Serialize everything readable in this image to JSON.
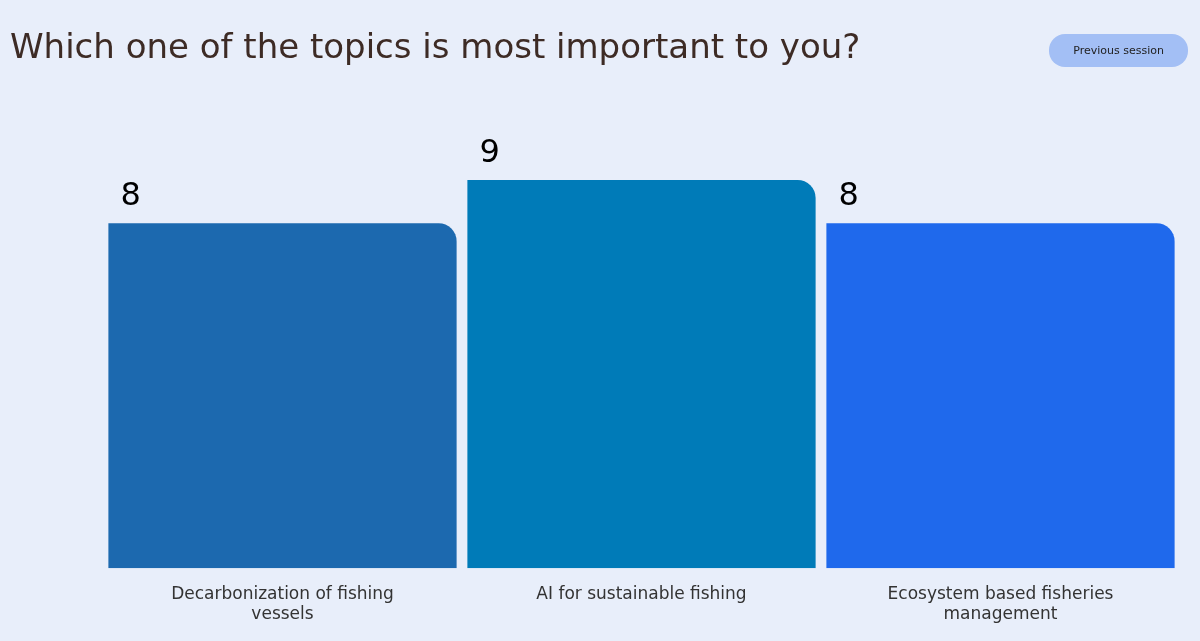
{
  "chart_data": {
    "type": "bar",
    "title": "Which one of the topics is most important to you?",
    "categories": [
      "Decarbonization of fishing vessels",
      "AI for sustainable fishing",
      "Ecosystem based fisheries management"
    ],
    "values": [
      8,
      9,
      8
    ],
    "colors": [
      "#1c69af",
      "#007bb8",
      "#1f69ec"
    ],
    "data_labels": true,
    "relative": false,
    "grid": false,
    "legend": false,
    "annotations": [
      "Previous session"
    ]
  }
}
